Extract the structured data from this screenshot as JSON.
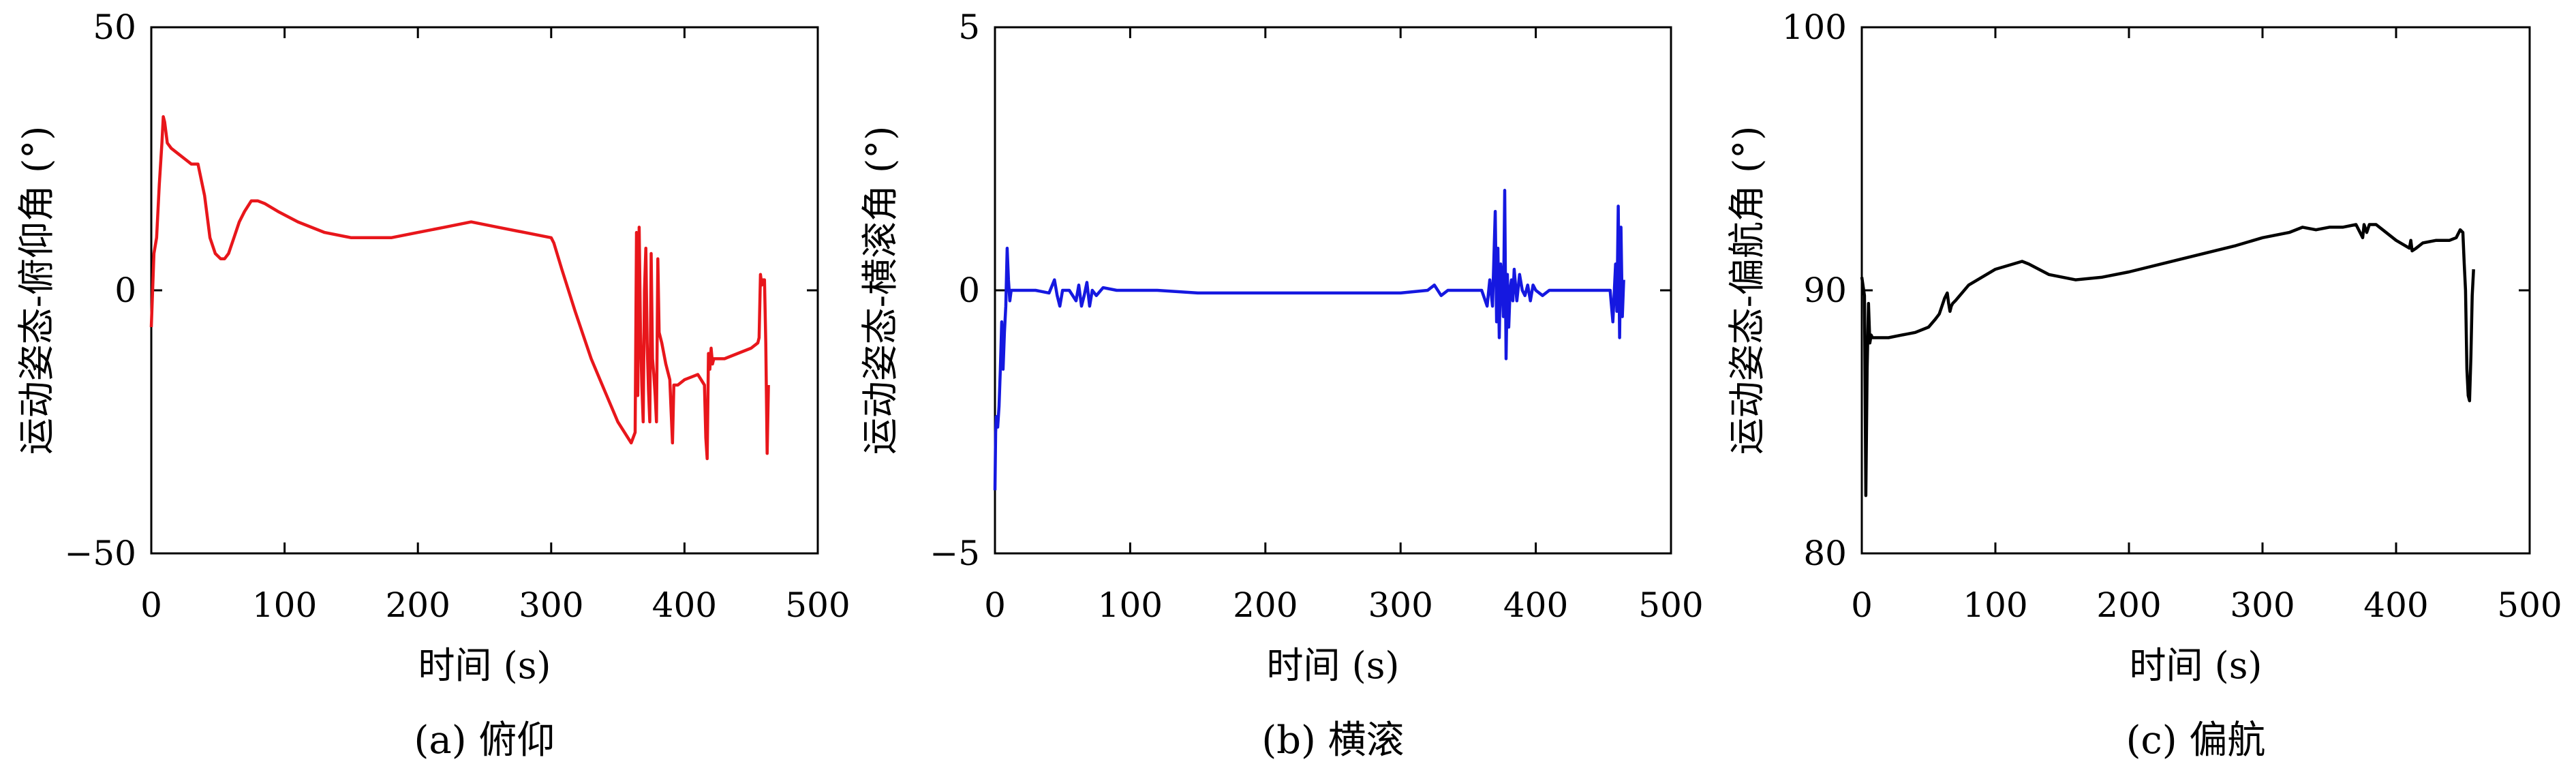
{
  "chart_data": [
    {
      "type": "line",
      "panel": "a",
      "caption": "(a) 俯仰",
      "xlabel": "时间 (s)",
      "ylabel": "运动姿态-俯仰角 (°)",
      "xlim": [
        0,
        500
      ],
      "ylim": [
        -50,
        50
      ],
      "xticks": [
        0,
        100,
        200,
        300,
        400,
        500
      ],
      "yticks": [
        -50,
        0,
        50
      ],
      "xtick_labels": [
        "0",
        "100",
        "200",
        "300",
        "400",
        "500"
      ],
      "ytick_labels": [
        "−50",
        "0",
        "50"
      ],
      "grid": false,
      "color": "#e8161b",
      "x": [
        0,
        2,
        4,
        6,
        8,
        9,
        10,
        12,
        15,
        20,
        25,
        30,
        35,
        40,
        44,
        48,
        52,
        55,
        58,
        62,
        66,
        70,
        75,
        80,
        85,
        95,
        110,
        130,
        150,
        180,
        200,
        220,
        240,
        260,
        280,
        300,
        302,
        308,
        318,
        330,
        340,
        350,
        360,
        363,
        364,
        365,
        366,
        367,
        368,
        369,
        370,
        371,
        372,
        373,
        374,
        375,
        376,
        377,
        378,
        379,
        380,
        381,
        383,
        386,
        389,
        390,
        391,
        392,
        395,
        400,
        410,
        415,
        416,
        417,
        418,
        419,
        420,
        421,
        422,
        430,
        440,
        450,
        455,
        456,
        457,
        458,
        459,
        460,
        461,
        462,
        463
      ],
      "y": [
        -7,
        7,
        10,
        20,
        28,
        33,
        32,
        28,
        27,
        26,
        25,
        24,
        24,
        18,
        10,
        7,
        6,
        6,
        7,
        10,
        13,
        15,
        17,
        17,
        16.5,
        15,
        13,
        11,
        10,
        10,
        11,
        12,
        13,
        12,
        11,
        10,
        9,
        4,
        -4,
        -13,
        -19,
        -25,
        -29,
        -27,
        11,
        -20,
        12,
        -8,
        -18,
        -25,
        0,
        8,
        -10,
        -19,
        -25,
        7,
        -13,
        -16,
        -20,
        -25,
        6,
        -8,
        -10,
        -14,
        -17,
        -23,
        -29,
        -18,
        -18,
        -17,
        -16,
        -18,
        -28,
        -32,
        -12,
        -15,
        -11,
        -14,
        -13,
        -13,
        -12,
        -11,
        -10,
        -9,
        3,
        1,
        2,
        2,
        -10,
        -31,
        -18
      ]
    },
    {
      "type": "line",
      "panel": "b",
      "caption": "(b) 横滚",
      "xlabel": "时间 (s)",
      "ylabel": "运动姿态-横滚角 (°)",
      "xlim": [
        0,
        500
      ],
      "ylim": [
        -5,
        5
      ],
      "xticks": [
        0,
        100,
        200,
        300,
        400,
        500
      ],
      "yticks": [
        -5,
        0,
        5
      ],
      "xtick_labels": [
        "0",
        "100",
        "200",
        "300",
        "400",
        "500"
      ],
      "ytick_labels": [
        "−5",
        "0",
        "5"
      ],
      "grid": false,
      "color": "#1518e0",
      "x": [
        0,
        0.5,
        1,
        2,
        3,
        4,
        5,
        6,
        7,
        8,
        9,
        10,
        11,
        12,
        14,
        20,
        30,
        40,
        44,
        46,
        48,
        50,
        55,
        60,
        62,
        64,
        66,
        68,
        70,
        72,
        75,
        80,
        90,
        100,
        120,
        150,
        200,
        250,
        300,
        320,
        325,
        330,
        335,
        340,
        350,
        360,
        364,
        366,
        368,
        370,
        371,
        372,
        373,
        374,
        375,
        376,
        377,
        378,
        379,
        380,
        381,
        382,
        383,
        384,
        386,
        388,
        390,
        392,
        394,
        396,
        398,
        400,
        405,
        410,
        420,
        440,
        455,
        457,
        459,
        460,
        461,
        462,
        463,
        464,
        465
      ],
      "y": [
        -3.8,
        -2.7,
        -2.4,
        -2.6,
        -2.2,
        -1.5,
        -0.6,
        -1.5,
        -0.8,
        -0.3,
        0.8,
        0.2,
        -0.2,
        0.0,
        0.0,
        0.0,
        0.0,
        -0.05,
        0.2,
        -0.1,
        -0.3,
        0.0,
        0.0,
        -0.2,
        0.1,
        -0.3,
        -0.1,
        0.15,
        -0.3,
        0.0,
        -0.1,
        0.05,
        0.0,
        0.0,
        0.0,
        -0.05,
        -0.05,
        -0.05,
        -0.05,
        0.0,
        0.1,
        -0.1,
        0.0,
        0.0,
        0.0,
        0.0,
        -0.3,
        0.2,
        -0.3,
        1.5,
        -0.6,
        0.8,
        -0.9,
        0.5,
        0.2,
        -0.5,
        1.9,
        -1.3,
        0.3,
        -0.7,
        0.0,
        0.2,
        -0.2,
        0.4,
        -0.2,
        0.3,
        0.0,
        -0.1,
        0.1,
        -0.2,
        0.1,
        0.0,
        -0.1,
        0.0,
        0.0,
        0.0,
        0.0,
        -0.6,
        0.5,
        -0.4,
        1.6,
        -0.9,
        1.2,
        -0.5,
        0.2
      ]
    },
    {
      "type": "line",
      "panel": "c",
      "caption": "(c) 偏航",
      "xlabel": "时间 (s)",
      "ylabel": "运动姿态-偏航角 (°)",
      "xlim": [
        0,
        500
      ],
      "ylim": [
        80,
        100
      ],
      "xticks": [
        0,
        100,
        200,
        300,
        400,
        500
      ],
      "yticks": [
        80,
        90,
        100
      ],
      "xtick_labels": [
        "0",
        "100",
        "200",
        "300",
        "400",
        "500"
      ],
      "ytick_labels": [
        "80",
        "90",
        "100"
      ],
      "grid": false,
      "color": "#000000",
      "x": [
        0,
        2,
        3,
        4,
        5,
        6,
        7,
        8,
        9,
        10,
        12,
        20,
        30,
        40,
        50,
        55,
        58,
        60,
        62,
        64,
        65,
        66,
        67,
        68,
        70,
        80,
        100,
        120,
        125,
        140,
        160,
        180,
        200,
        240,
        280,
        300,
        320,
        330,
        340,
        350,
        360,
        370,
        375,
        376,
        378,
        380,
        385,
        390,
        400,
        410,
        411,
        412,
        415,
        420,
        430,
        440,
        445,
        448,
        450,
        451,
        452,
        453,
        454,
        455,
        456,
        457,
        458
      ],
      "y": [
        90.5,
        89.8,
        82.2,
        87.0,
        89.5,
        88.0,
        88.3,
        88.2,
        88.2,
        88.2,
        88.2,
        88.2,
        88.3,
        88.4,
        88.6,
        88.9,
        89.1,
        89.4,
        89.7,
        89.9,
        89.5,
        89.2,
        89.4,
        89.5,
        89.6,
        90.2,
        90.8,
        91.1,
        91.0,
        90.6,
        90.4,
        90.5,
        90.7,
        91.2,
        91.7,
        92.0,
        92.2,
        92.4,
        92.3,
        92.4,
        92.4,
        92.5,
        92.0,
        92.5,
        92.2,
        92.5,
        92.5,
        92.3,
        91.9,
        91.6,
        91.9,
        91.5,
        91.6,
        91.8,
        91.9,
        91.9,
        92.0,
        92.3,
        92.2,
        91.0,
        90.0,
        87.0,
        86.0,
        85.8,
        87.5,
        89.8,
        90.8
      ]
    }
  ]
}
